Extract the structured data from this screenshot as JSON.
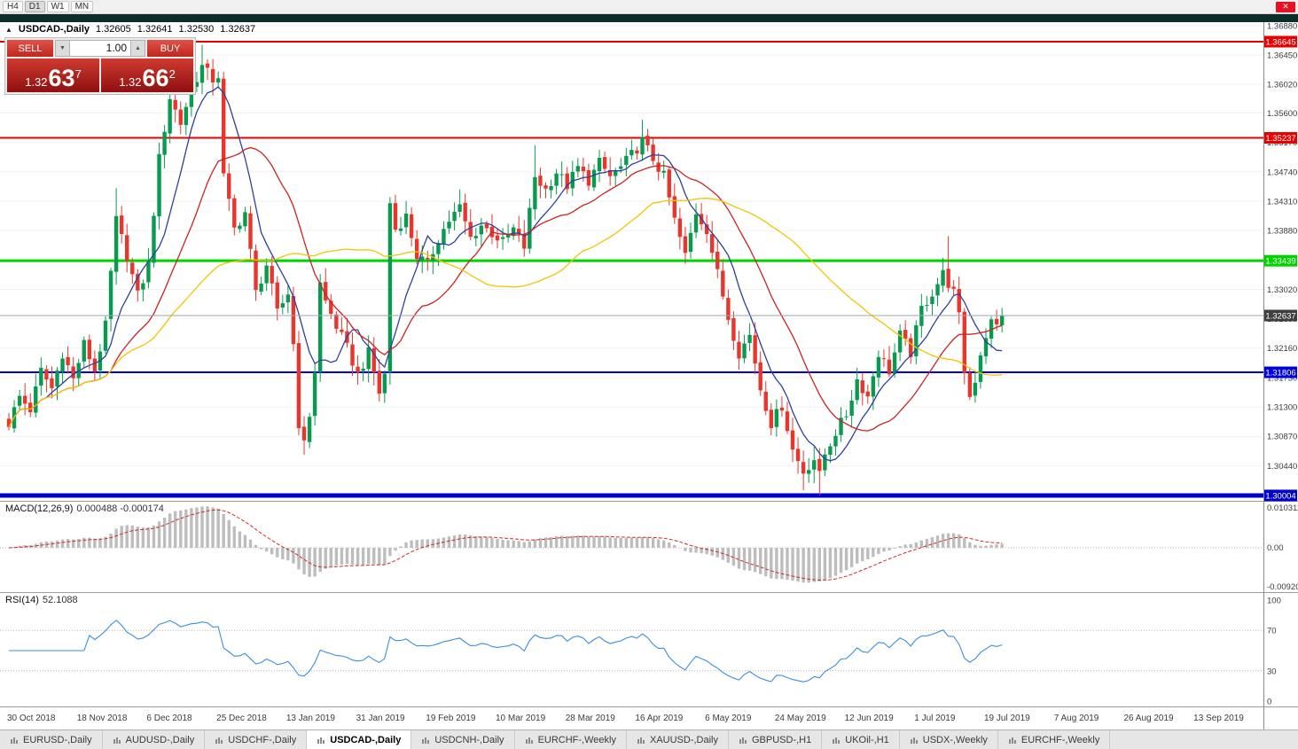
{
  "window": {
    "close_button": "✕"
  },
  "toolbar": {
    "timeframes": [
      "H4",
      "D1",
      "W1",
      "MN"
    ],
    "active_timeframe": "D1"
  },
  "header": {
    "collapse_arrow": "▲",
    "symbol_title": "USDCAD-,Daily",
    "open": "1.32605",
    "high": "1.32641",
    "low": "1.32530",
    "close": "1.32637"
  },
  "trade_panel": {
    "sell_label": "SELL",
    "buy_label": "BUY",
    "volume": "1.00",
    "spinner_down": "▼",
    "spinner_up": "▲",
    "bid": {
      "big": "1.32",
      "pips": "63",
      "sup": "7"
    },
    "ask": {
      "big": "1.32",
      "pips": "66",
      "sup": "2"
    }
  },
  "indicators": {
    "macd_title": "MACD(12,26,9)",
    "macd_values": "0.000488 -0.000174",
    "rsi_title": "RSI(14)",
    "rsi_value": "52.1088"
  },
  "tabs": [
    "EURUSD-,Daily",
    "AUDUSD-,Daily",
    "USDCHF-,Daily",
    "USDCAD-,Daily",
    "USDCNH-,Daily",
    "EURCHF-,Weekly",
    "XAUUSD-,Daily",
    "GBPUSD-,H1",
    "UKOil-,H1",
    "USDX-,Weekly",
    "EURCHF-,Weekly"
  ],
  "active_tab": "USDCAD-,Daily",
  "chart_data": {
    "type": "candlestick",
    "symbol": "USDCAD",
    "timeframe": "Daily",
    "bar_count": 186,
    "current_price": 1.32637,
    "current_label": "1.32637",
    "price_axis_ticks": [
      1.3688,
      1.3645,
      1.3602,
      1.356,
      1.3517,
      1.3474,
      1.3431,
      1.3388,
      1.3345,
      1.3302,
      1.3259,
      1.3216,
      1.3173,
      1.313,
      1.3087,
      1.3044,
      1.3001
    ],
    "x_labels": [
      "30 Oct 2018",
      "18 Nov 2018",
      "6 Dec 2018",
      "25 Dec 2018",
      "13 Jan 2019",
      "31 Jan 2019",
      "19 Feb 2019",
      "10 Mar 2019",
      "28 Mar 2019",
      "16 Apr 2019",
      "6 May 2019",
      "24 May 2019",
      "12 Jun 2019",
      "1 Jul 2019",
      "19 Jul 2019",
      "7 Aug 2019",
      "26 Aug 2019",
      "13 Sep 2019"
    ],
    "bars_per_label": 13,
    "close_path": [
      [
        0,
        1.3106
      ],
      [
        2,
        1.3145
      ],
      [
        4,
        1.3126
      ],
      [
        6,
        1.3183
      ],
      [
        8,
        1.3157
      ],
      [
        10,
        1.3209
      ],
      [
        12,
        1.317
      ],
      [
        14,
        1.3222
      ],
      [
        16,
        1.3183
      ],
      [
        18,
        1.3248
      ],
      [
        20,
        1.3403
      ],
      [
        22,
        1.3351
      ],
      [
        24,
        1.3293
      ],
      [
        26,
        1.3338
      ],
      [
        28,
        1.3493
      ],
      [
        30,
        1.3583
      ],
      [
        32,
        1.3545
      ],
      [
        34,
        1.3596
      ],
      [
        36,
        1.3628
      ],
      [
        38,
        1.3609
      ],
      [
        39,
        1.3615
      ],
      [
        40,
        1.3467
      ],
      [
        42,
        1.339
      ],
      [
        44,
        1.3415
      ],
      [
        46,
        1.3297
      ],
      [
        48,
        1.3338
      ],
      [
        50,
        1.3267
      ],
      [
        52,
        1.3297
      ],
      [
        53,
        1.3222
      ],
      [
        54,
        1.3106
      ],
      [
        55,
        1.3074
      ],
      [
        56,
        1.3119
      ],
      [
        57,
        1.3183
      ],
      [
        58,
        1.331
      ],
      [
        59,
        1.3284
      ],
      [
        61,
        1.3248
      ],
      [
        63,
        1.3216
      ],
      [
        65,
        1.3177
      ],
      [
        67,
        1.3209
      ],
      [
        69,
        1.3151
      ],
      [
        70,
        1.3177
      ],
      [
        71,
        1.3429
      ],
      [
        72,
        1.339
      ],
      [
        74,
        1.3409
      ],
      [
        76,
        1.3351
      ],
      [
        78,
        1.3338
      ],
      [
        80,
        1.3377
      ],
      [
        82,
        1.3403
      ],
      [
        84,
        1.3422
      ],
      [
        86,
        1.3377
      ],
      [
        88,
        1.3396
      ],
      [
        90,
        1.3384
      ],
      [
        92,
        1.3371
      ],
      [
        94,
        1.339
      ],
      [
        96,
        1.3364
      ],
      [
        98,
        1.3467
      ],
      [
        100,
        1.3448
      ],
      [
        102,
        1.3474
      ],
      [
        104,
        1.3454
      ],
      [
        106,
        1.348
      ],
      [
        108,
        1.3461
      ],
      [
        110,
        1.3487
      ],
      [
        112,
        1.3467
      ],
      [
        114,
        1.348
      ],
      [
        116,
        1.3499
      ],
      [
        118,
        1.3519
      ],
      [
        120,
        1.3493
      ],
      [
        122,
        1.3467
      ],
      [
        124,
        1.3403
      ],
      [
        126,
        1.3351
      ],
      [
        128,
        1.3415
      ],
      [
        130,
        1.339
      ],
      [
        132,
        1.3325
      ],
      [
        134,
        1.3261
      ],
      [
        136,
        1.3209
      ],
      [
        138,
        1.3235
      ],
      [
        140,
        1.3157
      ],
      [
        142,
        1.3106
      ],
      [
        144,
        1.3132
      ],
      [
        146,
        1.3067
      ],
      [
        148,
        1.3035
      ],
      [
        150,
        1.3054
      ],
      [
        151,
        1.3029
      ],
      [
        152,
        1.3061
      ],
      [
        154,
        1.3093
      ],
      [
        156,
        1.3119
      ],
      [
        158,
        1.317
      ],
      [
        160,
        1.3145
      ],
      [
        162,
        1.3209
      ],
      [
        164,
        1.3183
      ],
      [
        166,
        1.3235
      ],
      [
        168,
        1.3209
      ],
      [
        170,
        1.3274
      ],
      [
        172,
        1.3297
      ],
      [
        174,
        1.3325
      ],
      [
        176,
        1.3297
      ],
      [
        177,
        1.3261
      ],
      [
        178,
        1.3183
      ],
      [
        179,
        1.3145
      ],
      [
        180,
        1.317
      ],
      [
        181,
        1.3209
      ],
      [
        182,
        1.3235
      ],
      [
        183,
        1.3254
      ],
      [
        184,
        1.3248
      ],
      [
        185,
        1.32637
      ]
    ],
    "spike_highs": [
      [
        20,
        1.345
      ],
      [
        36,
        1.366
      ],
      [
        84,
        1.3448
      ],
      [
        98,
        1.3513
      ],
      [
        118,
        1.355
      ],
      [
        175,
        1.338
      ]
    ],
    "spike_lows": [
      [
        55,
        1.306
      ],
      [
        148,
        1.3008
      ],
      [
        151,
        1.3001
      ]
    ],
    "hlines": [
      {
        "price": 1.36645,
        "color": "#e60000",
        "width": 2,
        "label": "1.36645"
      },
      {
        "price": 1.35237,
        "color": "#e60000",
        "width": 2,
        "label": "1.35237"
      },
      {
        "price": 1.33439,
        "color": "#00d400",
        "width": 3,
        "label": "1.33439"
      },
      {
        "price": 1.31806,
        "color": "#0000e0",
        "width": 2,
        "label": "1.31806"
      },
      {
        "price": 1.30004,
        "color": "#0000cc",
        "width": 5,
        "label": "1.30004"
      }
    ],
    "ma_lines": [
      {
        "period": 8,
        "color": "#2e3f9f"
      },
      {
        "period": 20,
        "color": "#cc2222"
      },
      {
        "period": 50,
        "color": "#f2c400"
      }
    ],
    "up_color": "#089b50",
    "down_color": "#e8362d",
    "bid_line_color": "#9aa6b2",
    "macd": {
      "fast": 12,
      "slow": 26,
      "signal": 9,
      "axis_labels": [
        "0.010311",
        "0.00",
        "-0.009203"
      ],
      "hist_color": "#bdbdbd",
      "signal_color": "#d22a2a"
    },
    "rsi": {
      "period": 14,
      "levels": [
        100,
        70,
        30,
        0
      ],
      "line_color": "#3b8ede"
    }
  }
}
